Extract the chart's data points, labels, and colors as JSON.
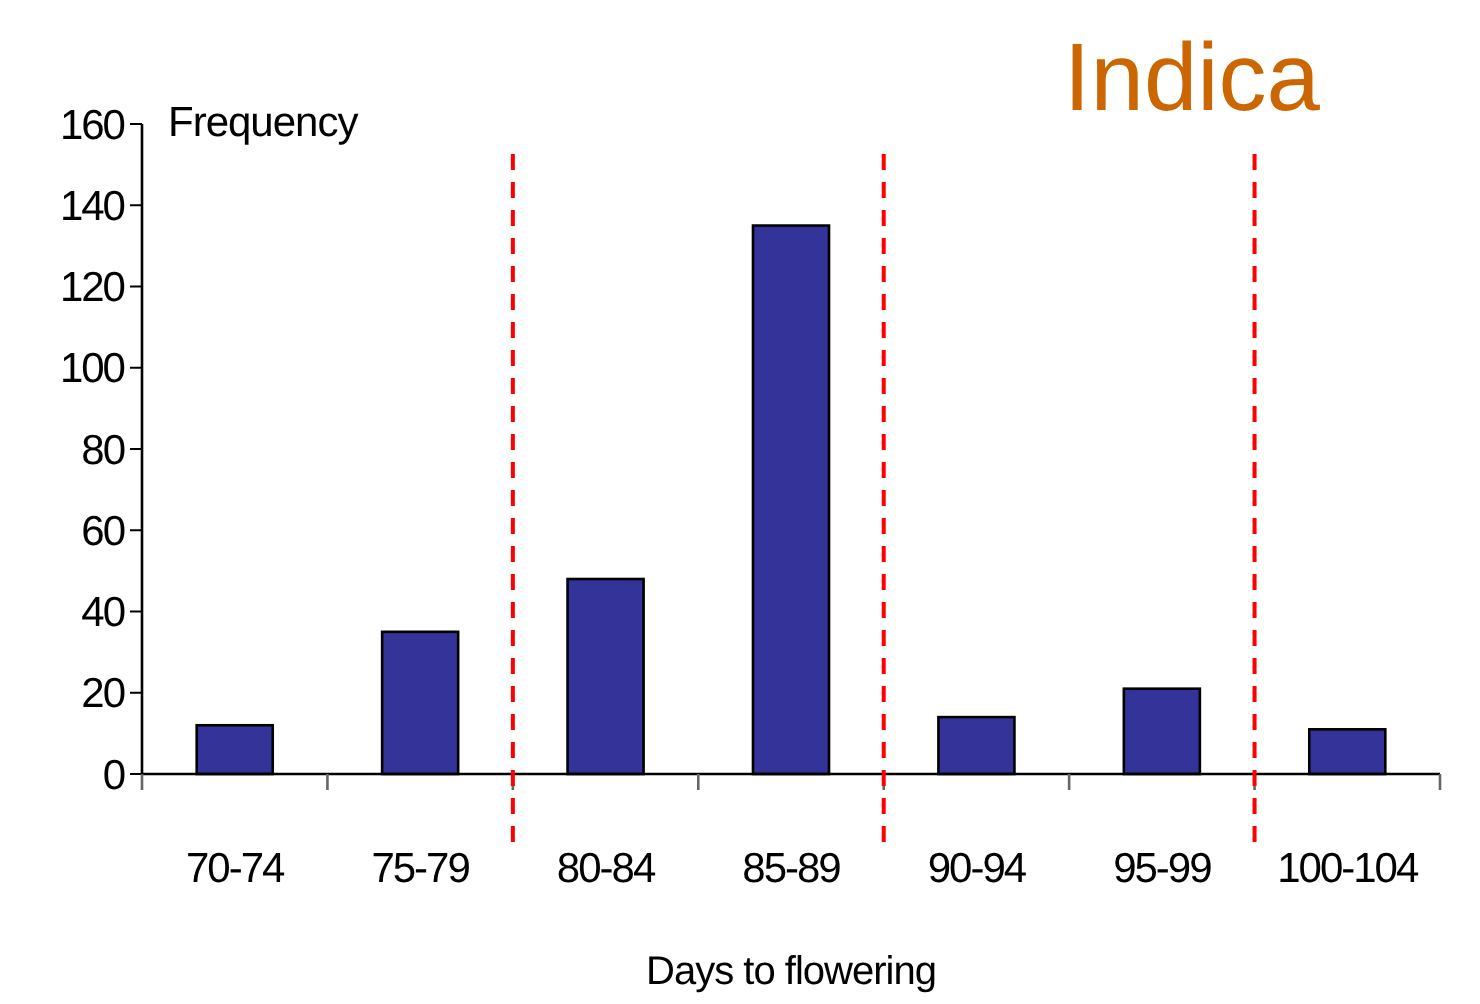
{
  "chart_data": {
    "type": "bar",
    "title": "Indica",
    "ylabel": "Frequency",
    "xlabel": "Days to flowering",
    "categories": [
      "70-74",
      "75-79",
      "80-84",
      "85-89",
      "90-94",
      "95-99",
      "100-104"
    ],
    "values": [
      12,
      35,
      48,
      135,
      14,
      21,
      11
    ],
    "color": "#333399",
    "ylim": [
      0,
      160
    ],
    "yticks": [
      0,
      20,
      40,
      60,
      80,
      100,
      120,
      140,
      160
    ],
    "grid": false
  }
}
